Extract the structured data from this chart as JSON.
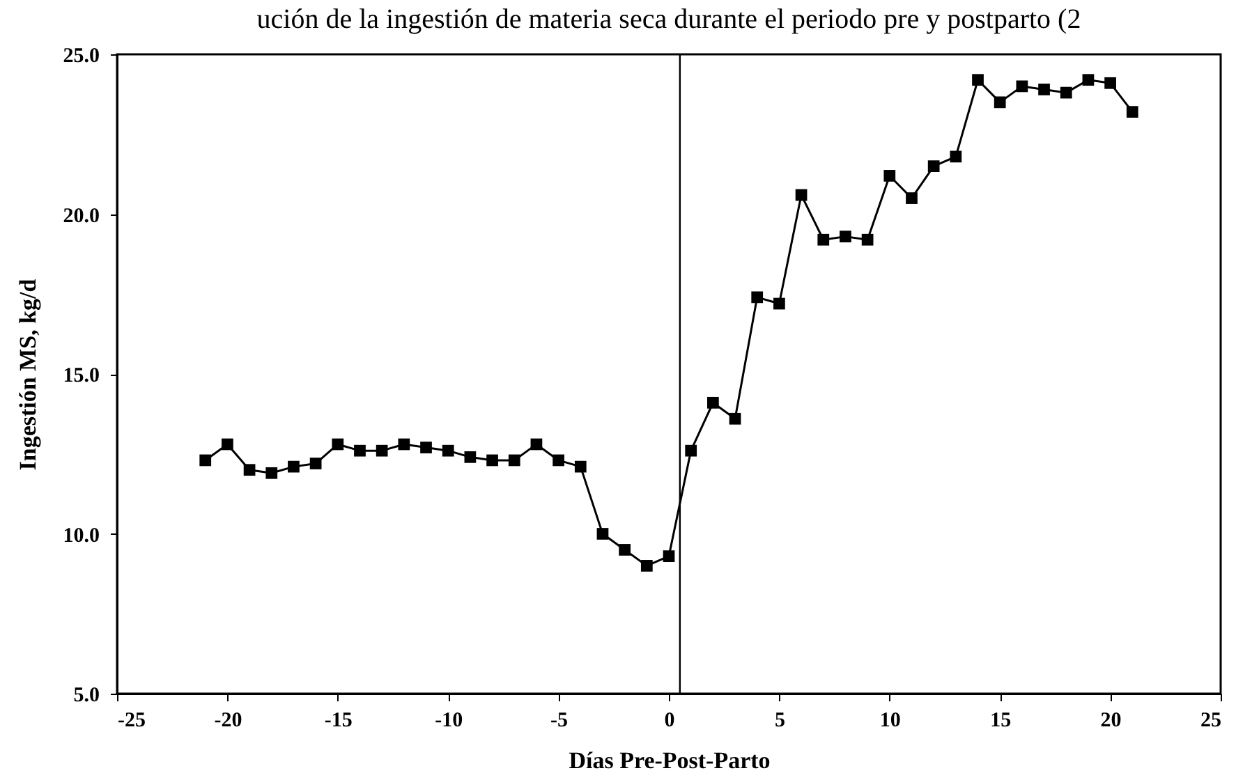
{
  "chart_data": {
    "type": "line",
    "title": "ución de la ingestión de materia seca durante el periodo pre y postparto (2",
    "xlabel": "Días Pre-Post-Parto",
    "ylabel": "Ingestión MS, kg/d",
    "x": [
      -21,
      -20,
      -19,
      -18,
      -17,
      -16,
      -15,
      -14,
      -13,
      -12,
      -11,
      -10,
      -9,
      -8,
      -7,
      -6,
      -5,
      -4,
      -3,
      -2,
      -1,
      0,
      1,
      2,
      3,
      4,
      5,
      6,
      7,
      8,
      9,
      10,
      11,
      12,
      13,
      14,
      15,
      16,
      17,
      18,
      19,
      20,
      21
    ],
    "series": [
      {
        "color": "#000000",
        "values": [
          12.3,
          12.8,
          12.0,
          11.9,
          12.1,
          12.2,
          12.8,
          12.6,
          12.6,
          12.8,
          12.7,
          12.6,
          12.4,
          12.3,
          12.3,
          12.8,
          12.3,
          12.1,
          10.0,
          9.5,
          9.0,
          9.3,
          12.6,
          14.1,
          13.6,
          17.4,
          17.2,
          20.6,
          19.2,
          19.3,
          19.2,
          21.2,
          20.5,
          21.5,
          21.8,
          24.2,
          23.5,
          24.0,
          23.9,
          23.8,
          24.2,
          24.1,
          23.2
        ]
      }
    ],
    "xlim": [
      -25,
      25
    ],
    "xticks": [
      -25,
      -20,
      -15,
      -10,
      -5,
      0,
      5,
      10,
      15,
      20,
      25
    ],
    "ylim": [
      5,
      25
    ],
    "yticks": [
      {
        "value": 5,
        "label": "5.0"
      },
      {
        "value": 10,
        "label": "10.0"
      },
      {
        "value": 15,
        "label": "15.0"
      },
      {
        "value": 20,
        "label": "20.0"
      },
      {
        "value": 25,
        "label": "25.0"
      }
    ],
    "ref_lines": [
      {
        "axis": "x",
        "value": 0.5,
        "color": "#000000"
      }
    ],
    "grid": false,
    "marker": "square",
    "line_style": "solid"
  }
}
